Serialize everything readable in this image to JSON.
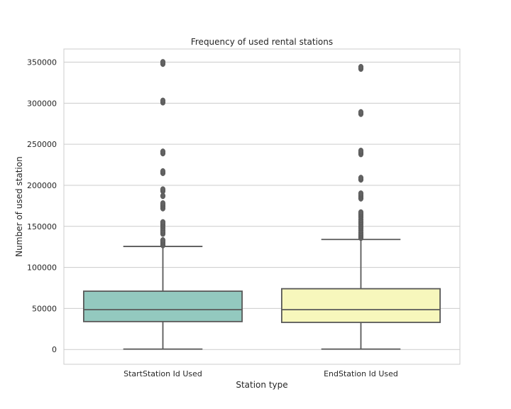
{
  "chart_data": {
    "type": "box",
    "title": "Frequency of used rental stations",
    "xlabel": "Station type",
    "ylabel": "Number of used station",
    "ylim": [
      -18000,
      366000
    ],
    "yticks": [
      0,
      50000,
      100000,
      150000,
      200000,
      250000,
      300000,
      350000
    ],
    "ytick_labels": [
      "0",
      "50000",
      "100000",
      "150000",
      "200000",
      "250000",
      "300000",
      "350000"
    ],
    "grid": "horizontal",
    "categories": [
      "StartStation Id Used",
      "EndStation Id Used"
    ],
    "series": [
      {
        "category": "StartStation Id Used",
        "color": "#93c9bf",
        "whisker_low": 500,
        "q1": 34000,
        "median": 48500,
        "q3": 71000,
        "whisker_high": 125500,
        "outliers": [
          127000,
          129000,
          131000,
          133000,
          141000,
          143000,
          145000,
          148000,
          151000,
          153000,
          155000,
          172000,
          174000,
          176000,
          178000,
          187000,
          193000,
          195000,
          215000,
          217000,
          239000,
          241000,
          301000,
          303000,
          348000,
          350000
        ]
      },
      {
        "category": "EndStation Id Used",
        "color": "#f7f7bc",
        "whisker_low": 500,
        "q1": 33000,
        "median": 48500,
        "q3": 74000,
        "whisker_high": 134000,
        "outliers": [
          136000,
          138000,
          140000,
          142000,
          145000,
          148000,
          150000,
          153000,
          155000,
          158000,
          161000,
          163000,
          165000,
          167000,
          184000,
          186000,
          188000,
          190000,
          207000,
          209000,
          238000,
          240000,
          242000,
          287000,
          289000,
          342000,
          344000
        ]
      }
    ]
  }
}
